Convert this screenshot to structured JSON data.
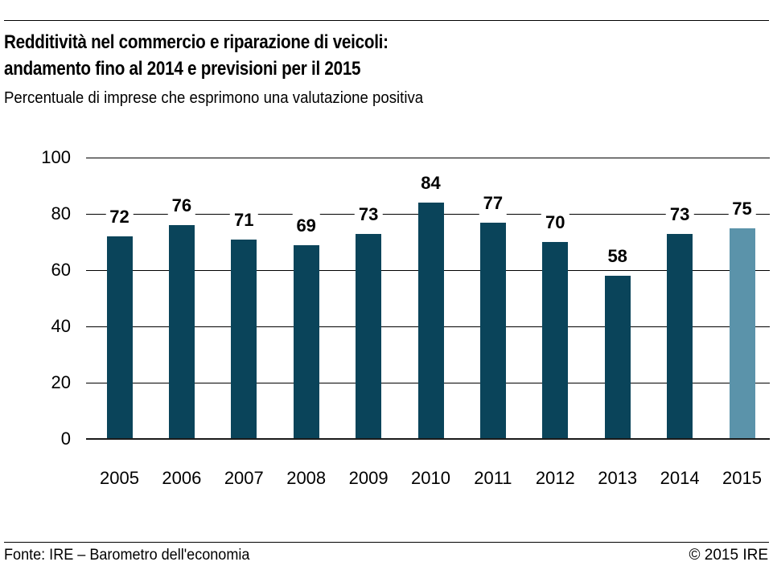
{
  "header": {
    "title_line1": "Redditività nel commercio e riparazione di veicoli:",
    "title_line2": "andamento fino al 2014 e previsioni per il 2015",
    "subtitle": "Percentuale di imprese che esprimono una valutazione positiva"
  },
  "chart_data": {
    "type": "bar",
    "title": "Redditività nel commercio e riparazione di veicoli: andamento fino al 2014 e previsioni per il 2015",
    "subtitle": "Percentuale di imprese che esprimono una valutazione positiva",
    "categories": [
      "2005",
      "2006",
      "2007",
      "2008",
      "2009",
      "2010",
      "2011",
      "2012",
      "2013",
      "2014",
      "2015"
    ],
    "values": [
      72,
      76,
      71,
      69,
      73,
      84,
      77,
      70,
      58,
      73,
      75
    ],
    "value_labels_shown": true,
    "forecast_category": "2015",
    "xlabel": "",
    "ylabel": "",
    "yticks": [
      0,
      20,
      40,
      60,
      80,
      100
    ],
    "ylim": [
      0,
      100
    ],
    "grid": true,
    "legend": null,
    "colors": {
      "bar_historical": "#0a445a",
      "bar_forecast": "#5b93aa",
      "gridline": "#000000",
      "text": "#000000",
      "background": "#ffffff"
    }
  },
  "footer": {
    "source": "Fonte: IRE – Barometro dell'economia",
    "copyright": "© 2015 IRE"
  }
}
